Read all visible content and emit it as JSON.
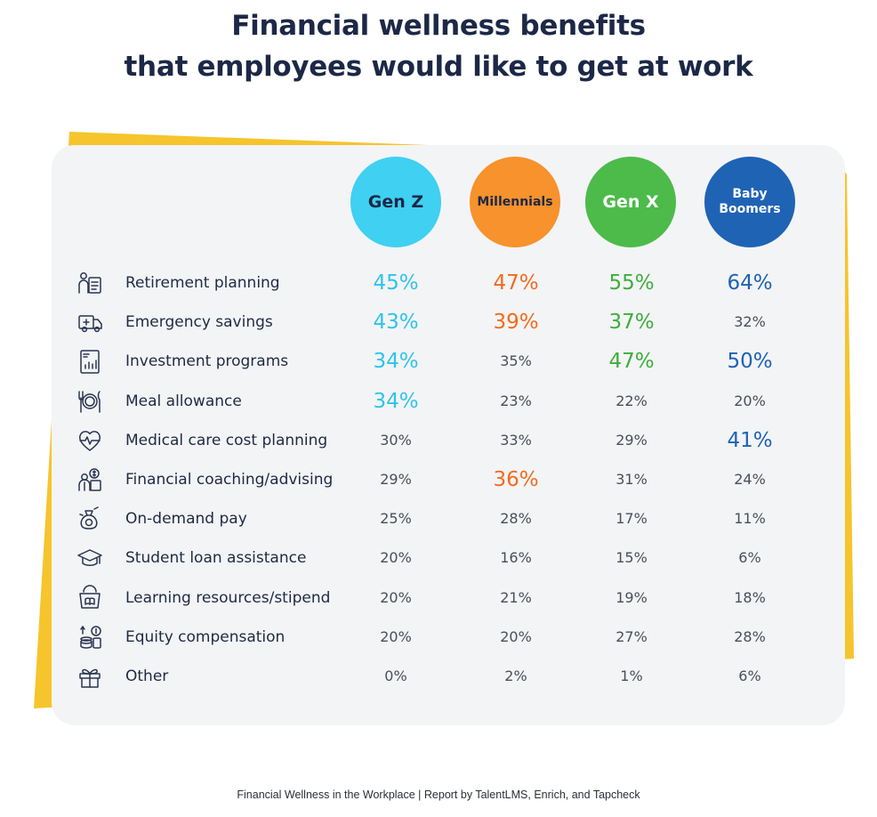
{
  "title_line1": "Financial wellness benefits",
  "title_line2": "that employees would like to get at work",
  "source": "Financial Wellness in the Workplace | Report by TalentLMS, Enrich, and Tapcheck",
  "colors": {
    "gen_z": "#3fd0f2",
    "millennials": "#f7922c",
    "gen_x": "#4cbb4a",
    "baby_boomers": "#1f63b5",
    "accent_yellow": "#f6c42c",
    "card": "#f3f4f6",
    "plain_value": "#4a4f5a",
    "gen_z_text": "#2fc3ec",
    "millennials_text": "#f26b1d",
    "gen_x_text": "#3eae3c",
    "baby_boomers_text": "#1e62b4"
  },
  "chart_data": {
    "type": "table",
    "columns": [
      {
        "name": "Gen Z",
        "lines": [
          "Gen Z"
        ]
      },
      {
        "name": "Millennials",
        "lines": [
          "Millennials"
        ]
      },
      {
        "name": "Gen X",
        "lines": [
          "Gen X"
        ]
      },
      {
        "name": "Baby Boomers",
        "lines": [
          "Baby",
          "Boomers"
        ]
      }
    ],
    "rows": [
      {
        "label": "Retirement planning",
        "icon": "retirement-icon",
        "cells": [
          {
            "text": "45%",
            "value": 45,
            "highlight": true
          },
          {
            "text": "47%",
            "value": 47,
            "highlight": true
          },
          {
            "text": "55%",
            "value": 55,
            "highlight": true
          },
          {
            "text": "64%",
            "value": 64,
            "highlight": true
          }
        ]
      },
      {
        "label": "Emergency savings",
        "icon": "ambulance-icon",
        "cells": [
          {
            "text": "43%",
            "value": 43,
            "highlight": true
          },
          {
            "text": "39%",
            "value": 39,
            "highlight": true
          },
          {
            "text": "37%",
            "value": 37,
            "highlight": true
          },
          {
            "text": "32%",
            "value": 32,
            "highlight": false
          }
        ]
      },
      {
        "label": "Investment programs",
        "icon": "investment-doc-icon",
        "cells": [
          {
            "text": "34%",
            "value": 34,
            "highlight": true
          },
          {
            "text": "35%",
            "value": 35,
            "highlight": false
          },
          {
            "text": "47%",
            "value": 47,
            "highlight": true
          },
          {
            "text": "50%",
            "value": 50,
            "highlight": true
          }
        ]
      },
      {
        "label": "Meal allowance",
        "icon": "meal-plate-icon",
        "cells": [
          {
            "text": "34%",
            "value": 34,
            "highlight": true
          },
          {
            "text": "23%",
            "value": 23,
            "highlight": false
          },
          {
            "text": "22%",
            "value": 22,
            "highlight": false
          },
          {
            "text": "20%",
            "value": 20,
            "highlight": false
          }
        ]
      },
      {
        "label": "Medical care cost planning",
        "icon": "heart-pulse-icon",
        "cells": [
          {
            "text": "30%",
            "value": 30,
            "highlight": false
          },
          {
            "text": "33%",
            "value": 33,
            "highlight": false
          },
          {
            "text": "29%",
            "value": 29,
            "highlight": false
          },
          {
            "text": "41%",
            "value": 41,
            "highlight": true
          }
        ]
      },
      {
        "label": "Financial coaching/advising",
        "icon": "coach-icon",
        "cells": [
          {
            "text": "29%",
            "value": 29,
            "highlight": false
          },
          {
            "text": "36%",
            "value": 36,
            "highlight": true
          },
          {
            "text": "31%",
            "value": 31,
            "highlight": false
          },
          {
            "text": "24%",
            "value": 24,
            "highlight": false
          }
        ]
      },
      {
        "label": "On-demand pay",
        "icon": "money-bag-icon",
        "cells": [
          {
            "text": "25%",
            "value": 25,
            "highlight": false
          },
          {
            "text": "28%",
            "value": 28,
            "highlight": false
          },
          {
            "text": "17%",
            "value": 17,
            "highlight": false
          },
          {
            "text": "11%",
            "value": 11,
            "highlight": false
          }
        ]
      },
      {
        "label": "Student loan assistance",
        "icon": "graduation-cap-icon",
        "cells": [
          {
            "text": "20%",
            "value": 20,
            "highlight": false
          },
          {
            "text": "16%",
            "value": 16,
            "highlight": false
          },
          {
            "text": "15%",
            "value": 15,
            "highlight": false
          },
          {
            "text": "6%",
            "value": 6,
            "highlight": false
          }
        ]
      },
      {
        "label": "Learning resources/stipend",
        "icon": "book-purse-icon",
        "cells": [
          {
            "text": "20%",
            "value": 20,
            "highlight": false
          },
          {
            "text": "21%",
            "value": 21,
            "highlight": false
          },
          {
            "text": "19%",
            "value": 19,
            "highlight": false
          },
          {
            "text": "18%",
            "value": 18,
            "highlight": false
          }
        ]
      },
      {
        "label": "Equity compensation",
        "icon": "coin-stack-icon",
        "cells": [
          {
            "text": "20%",
            "value": 20,
            "highlight": false
          },
          {
            "text": "20%",
            "value": 20,
            "highlight": false
          },
          {
            "text": "27%",
            "value": 27,
            "highlight": false
          },
          {
            "text": "28%",
            "value": 28,
            "highlight": false
          }
        ]
      },
      {
        "label": "Other",
        "icon": "gift-icon",
        "cells": [
          {
            "text": "0%",
            "value": 0,
            "highlight": false
          },
          {
            "text": "2%",
            "value": 2,
            "highlight": false
          },
          {
            "text": "1%",
            "value": 1,
            "highlight": false
          },
          {
            "text": "6%",
            "value": 6,
            "highlight": false
          }
        ]
      }
    ]
  }
}
